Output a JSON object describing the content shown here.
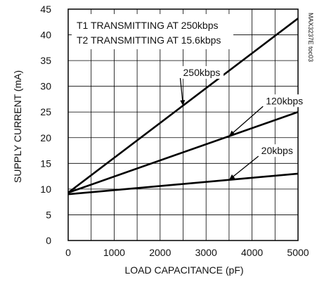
{
  "chart_data": {
    "type": "line",
    "title": "",
    "xlabel": "LOAD CAPACITANCE (pF)",
    "ylabel": "SUPPLY CURRENT (mA)",
    "xlim": [
      0,
      5000
    ],
    "ylim": [
      0,
      45
    ],
    "xticks": [
      0,
      1000,
      2000,
      3000,
      4000,
      5000
    ],
    "yticks": [
      0,
      5,
      10,
      15,
      20,
      25,
      30,
      35,
      40,
      45
    ],
    "x_minor_step": 500,
    "grid": true,
    "annotations": [
      "T1 TRANSMITTING AT 250kbps",
      "T2 TRANSMITTING AT 15.6kbps"
    ],
    "figure_ref": "MAX3237E toc03",
    "series": [
      {
        "name": "250kbps",
        "x": [
          0,
          5000
        ],
        "y": [
          9.3,
          43.2
        ],
        "label_at": [
          2500,
          32
        ],
        "arrow_to": [
          2500,
          26.2
        ]
      },
      {
        "name": "120kbps",
        "x": [
          0,
          5000
        ],
        "y": [
          9.3,
          25.0
        ],
        "label_at": [
          4300,
          26.5
        ],
        "arrow_to": [
          3500,
          20.3
        ]
      },
      {
        "name": "20kbps",
        "x": [
          0,
          5000
        ],
        "y": [
          9.0,
          13.0
        ],
        "label_at": [
          4200,
          16.8
        ],
        "arrow_to": [
          3500,
          11.8
        ]
      }
    ]
  }
}
